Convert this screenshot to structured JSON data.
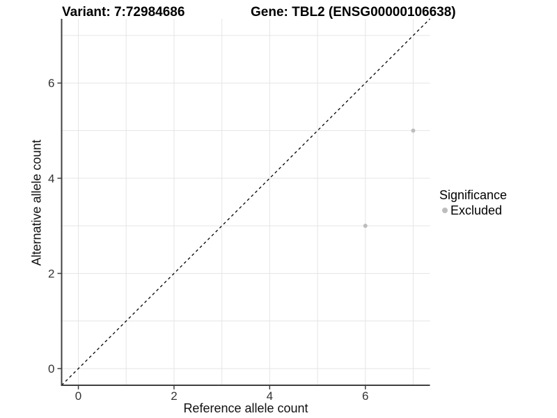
{
  "chart_data": {
    "type": "scatter",
    "title_left": "Variant: 7:72984686",
    "title_right": "Gene: TBL2 (ENSG00000106638)",
    "xlabel": "Reference allele count",
    "ylabel": "Alternative allele count",
    "xlim": [
      -0.35,
      7.35
    ],
    "ylim": [
      -0.35,
      7.35
    ],
    "xticks": [
      0,
      2,
      4,
      6
    ],
    "yticks": [
      0,
      2,
      4,
      6
    ],
    "grid_interval": 1,
    "grid": true,
    "identity_line": {
      "show": true,
      "style": "dashed",
      "color": "#000000"
    },
    "legend": {
      "position": "right",
      "title": "Significance",
      "items": [
        {
          "label": "Excluded",
          "color": "#bdbdbd"
        }
      ]
    },
    "series": [
      {
        "name": "Excluded",
        "color": "#bdbdbd",
        "points": [
          {
            "x": 6,
            "y": 3
          },
          {
            "x": 7,
            "y": 5
          }
        ]
      }
    ],
    "colors": {
      "background": "#ffffff",
      "grid": "#e5e5e5",
      "axis_line": "#404040",
      "tick_mark": "#404040",
      "tick_label": "#333333",
      "point": "#bdbdbd"
    }
  }
}
